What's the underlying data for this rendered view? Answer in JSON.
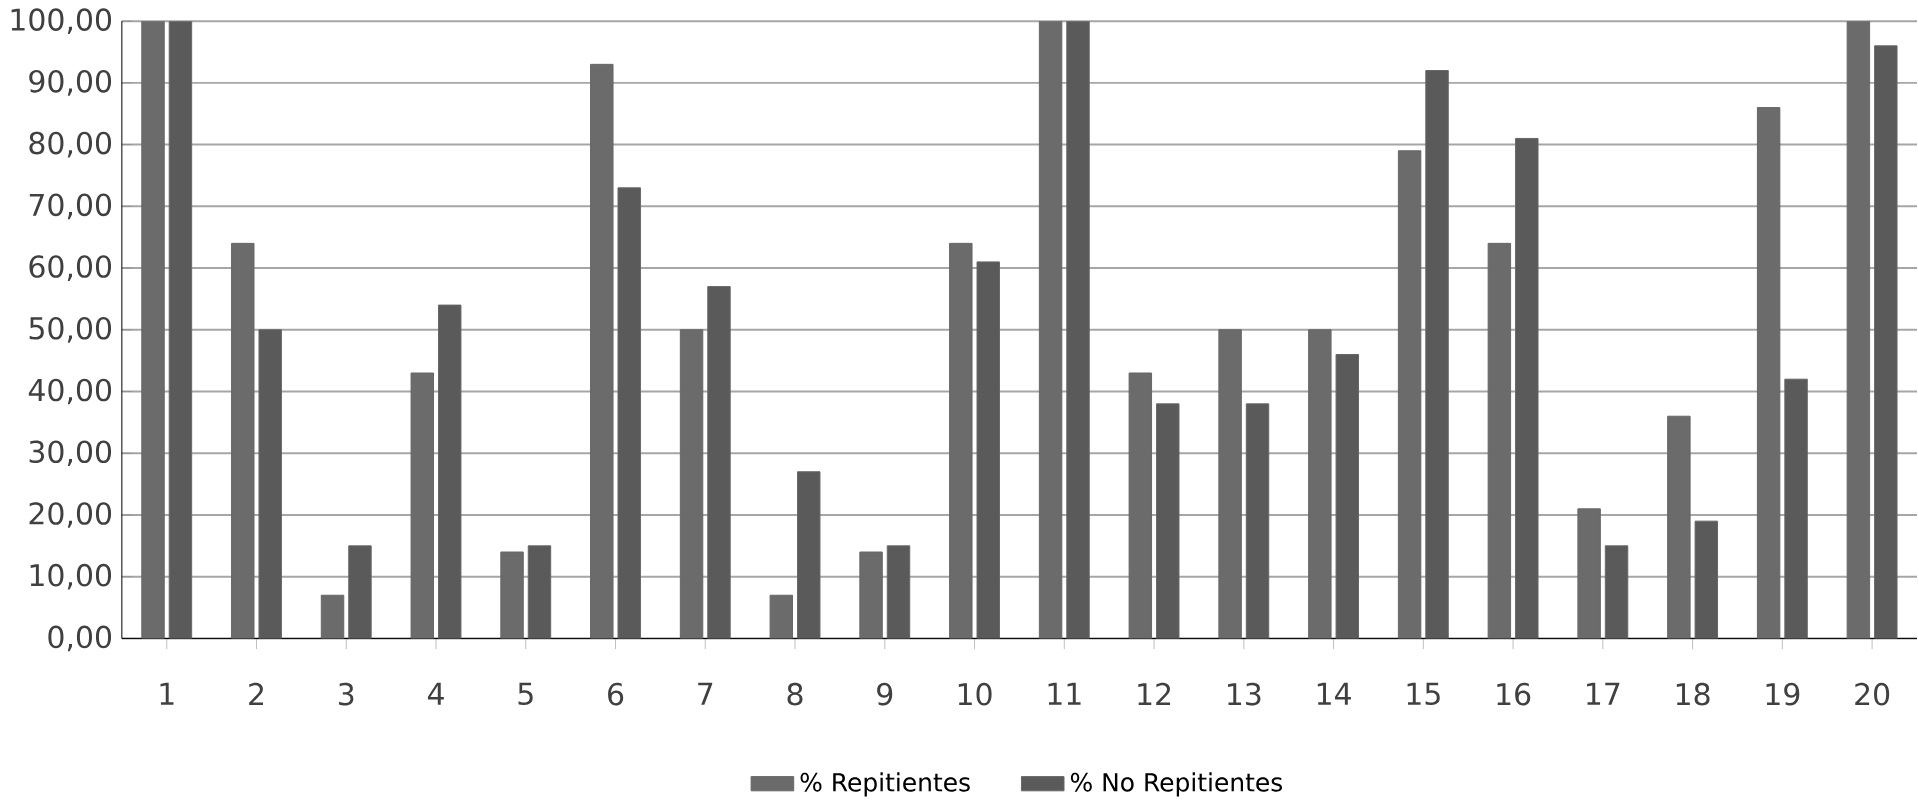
{
  "chart_data": {
    "type": "bar",
    "categories": [
      "1",
      "2",
      "3",
      "4",
      "5",
      "6",
      "7",
      "8",
      "9",
      "10",
      "11",
      "12",
      "13",
      "14",
      "15",
      "16",
      "17",
      "18",
      "19",
      "20"
    ],
    "series": [
      {
        "name": "% Repitientes",
        "color": "#6b6b6b",
        "values": [
          100,
          64,
          7,
          43,
          14,
          93,
          50,
          7,
          14,
          64,
          100,
          43,
          50,
          50,
          79,
          64,
          21,
          36,
          86,
          100
        ]
      },
      {
        "name": "% No Repitientes",
        "color": "#5a5a5a",
        "values": [
          100,
          50,
          15,
          54,
          15,
          73,
          57,
          27,
          15,
          61,
          100,
          38,
          38,
          46,
          92,
          81,
          15,
          19,
          42,
          96
        ]
      }
    ],
    "ylim": [
      0,
      100
    ],
    "yticks": [
      {
        "value": 0,
        "label": "0,00"
      },
      {
        "value": 10,
        "label": "10,00"
      },
      {
        "value": 20,
        "label": "20,00"
      },
      {
        "value": 30,
        "label": "30,00"
      },
      {
        "value": 40,
        "label": "40,00"
      },
      {
        "value": 50,
        "label": "50,00"
      },
      {
        "value": 60,
        "label": "60,00"
      },
      {
        "value": 70,
        "label": "70,00"
      },
      {
        "value": 80,
        "label": "80,00"
      },
      {
        "value": 90,
        "label": "90,00"
      },
      {
        "value": 100,
        "label": "100,00"
      }
    ],
    "grid": "y",
    "legend": "bottom"
  }
}
